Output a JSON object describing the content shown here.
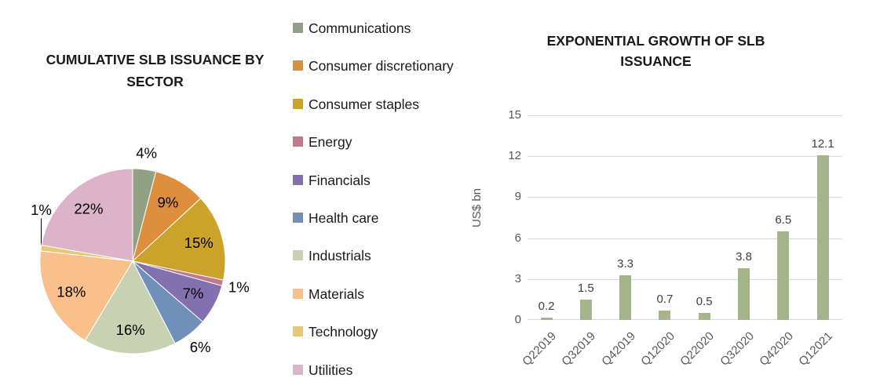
{
  "page": {
    "background": "#ffffff"
  },
  "chart_data": [
    {
      "type": "pie",
      "title": "CUMULATIVE SLB ISSUANCE BY SECTOR",
      "legend_position": "right",
      "slices": [
        {
          "label": "Communications",
          "value": 4,
          "pct_label": "4%",
          "color": "#92A183",
          "label_outside": true,
          "leader_line": false
        },
        {
          "label": "Consumer discretionary",
          "value": 9,
          "pct_label": "9%",
          "color": "#DE8F3E",
          "label_outside": false,
          "leader_line": false
        },
        {
          "label": "Consumer staples",
          "value": 15,
          "pct_label": "15%",
          "color": "#CBA32A",
          "label_outside": false,
          "leader_line": false
        },
        {
          "label": "Energy",
          "value": 1,
          "pct_label": "1%",
          "color": "#C07A8C",
          "label_outside": true,
          "leader_line": false
        },
        {
          "label": "Financials",
          "value": 7,
          "pct_label": "7%",
          "color": "#8270AF",
          "label_outside": false,
          "leader_line": false
        },
        {
          "label": "Health care",
          "value": 6,
          "pct_label": "6%",
          "color": "#7090B9",
          "label_outside": true,
          "leader_line": false
        },
        {
          "label": "Industrials",
          "value": 16,
          "pct_label": "16%",
          "color": "#C8D2B3",
          "label_outside": false,
          "leader_line": false
        },
        {
          "label": "Materials",
          "value": 18,
          "pct_label": "18%",
          "color": "#FAC08C",
          "label_outside": false,
          "leader_line": false
        },
        {
          "label": "Technology",
          "value": 1,
          "pct_label": "1%",
          "color": "#E6C975",
          "label_outside": true,
          "leader_line": true
        },
        {
          "label": "Utilities",
          "value": 22,
          "pct_label": "22%",
          "color": "#DCB3C8",
          "label_outside": false,
          "leader_line": false
        }
      ]
    },
    {
      "type": "bar",
      "title": "EXPONENTIAL GROWTH OF SLB ISSUANCE",
      "ylabel": "US$ bn",
      "categories": [
        "Q22019",
        "Q32019",
        "Q42019",
        "Q12020",
        "Q22020",
        "Q32020",
        "Q42020",
        "Q12021"
      ],
      "values": [
        0.2,
        1.5,
        3.3,
        0.7,
        0.5,
        3.8,
        6.5,
        12.1
      ],
      "ylim": [
        0,
        15
      ],
      "yticks": [
        0,
        3,
        6,
        9,
        12,
        15
      ],
      "bar_color": "#A5B48A",
      "gridline_color": "#D9D9D9",
      "grid": true,
      "legend_position": "none"
    }
  ],
  "colors": {
    "title_text": "#1a1a1a",
    "axis_text": "#595959",
    "value_label_text": "#404040",
    "pie_label_text": "#000000"
  }
}
